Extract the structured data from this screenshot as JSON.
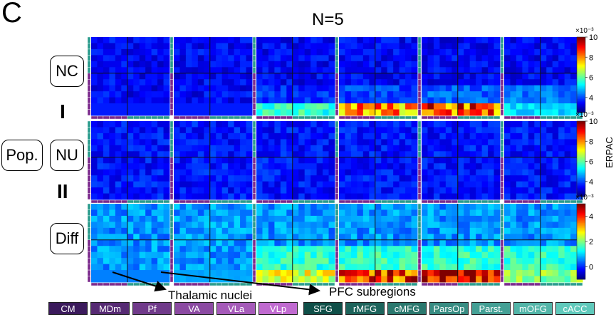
{
  "panel_letter": "C",
  "title": "N=5",
  "rows": [
    {
      "label": "NC",
      "symbol": ""
    },
    {
      "label": "NU",
      "symbol": "I"
    },
    {
      "label": "Diff",
      "symbol": "II"
    }
  ],
  "side_label": "Pop.",
  "colorbar_label": "ERPAC",
  "annotations": {
    "thalamic": "Thalamic nuclei",
    "pfc": "PFC subregions"
  },
  "colors": {
    "thalamic": "#7b2a8c",
    "pfc": "#2a9b8c",
    "thalamic_dark": "#3b1a5c",
    "pfc_dark": "#0f4f48"
  },
  "legend": {
    "thalamic": [
      "CM",
      "MDm",
      "Pf",
      "VA",
      "VLa",
      "VLp"
    ],
    "pfc": [
      "SFG",
      "rMFG",
      "cMFG",
      "ParsOp",
      "Parst.",
      "mOFG",
      "cACC"
    ]
  },
  "chart_data": [
    {
      "type": "heatmap",
      "title": "NC",
      "colorbar": {
        "ticks": [
          4,
          6,
          8,
          10
        ],
        "range": [
          2.5,
          10
        ],
        "exponent": "×10⁻³"
      }
    },
    {
      "type": "heatmap",
      "title": "NU",
      "colorbar": {
        "ticks": [
          4,
          6,
          8,
          10
        ],
        "range": [
          2.5,
          10
        ],
        "exponent": "×10⁻³",
        "label": "ERPAC"
      }
    },
    {
      "type": "heatmap",
      "title": "Diff",
      "colorbar": {
        "ticks": [
          0,
          2,
          4
        ],
        "range": [
          -1,
          5
        ],
        "exponent": "×10⁻³"
      }
    }
  ]
}
